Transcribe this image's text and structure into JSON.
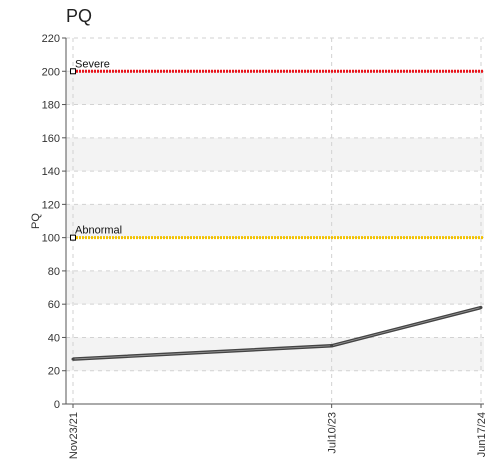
{
  "chart_data": {
    "type": "line",
    "title": "PQ",
    "ylabel": "PQ",
    "xlabel": "",
    "categories": [
      "Nov23/21",
      "Jul10/23",
      "Jun17/24"
    ],
    "x_dates": [
      "2021-11-23",
      "2023-07-10",
      "2024-06-17"
    ],
    "ylim": [
      0,
      220
    ],
    "yticks": [
      0,
      20,
      40,
      60,
      80,
      100,
      120,
      140,
      160,
      180,
      200,
      220
    ],
    "grid": true,
    "series": [
      {
        "values": [
          27,
          35,
          58
        ],
        "color": "#444444"
      }
    ],
    "reference_lines": [
      {
        "label": "Severe",
        "value": 200,
        "color": "#e8141c"
      },
      {
        "label": "Abnormal",
        "value": 100,
        "color": "#f2c200"
      }
    ]
  }
}
